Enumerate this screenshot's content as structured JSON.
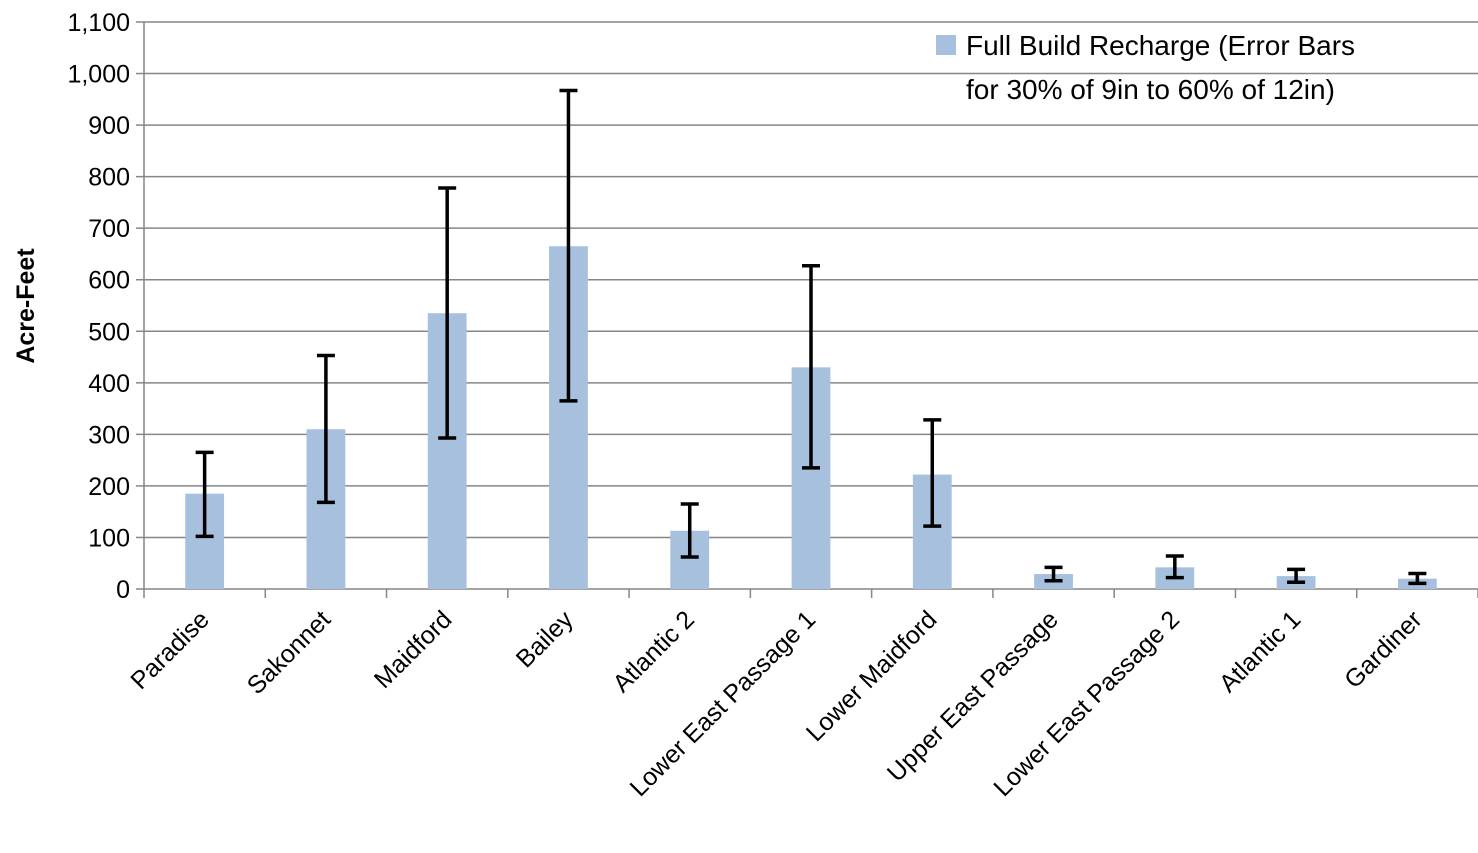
{
  "chart_data": {
    "type": "bar",
    "title": "",
    "xlabel": "",
    "ylabel": "Acre-Feet",
    "ylim": [
      0,
      1100
    ],
    "yticks": [
      0,
      100,
      200,
      300,
      400,
      500,
      600,
      700,
      800,
      900,
      1000,
      1100
    ],
    "ytick_labels": [
      "0",
      "100",
      "200",
      "300",
      "400",
      "500",
      "600",
      "700",
      "800",
      "900",
      "1,000",
      "1,100"
    ],
    "grid": true,
    "legend_position": "top-right",
    "categories": [
      "Paradise",
      "Sakonnet",
      "Maidford",
      "Bailey",
      "Atlantic 2",
      "Lower East Passage 1",
      "Lower Maidford",
      "Upper East Passage",
      "Lower East Passage 2",
      "Atlantic 1",
      "Gardiner"
    ],
    "series": [
      {
        "name": "Full Build Recharge (Error Bars for 30% of 9in to 60% of 12in)",
        "color": "#a7c0de",
        "values": [
          185,
          310,
          535,
          665,
          113,
          430,
          222,
          29,
          42,
          25,
          20
        ],
        "error_low": [
          102,
          168,
          293,
          365,
          62,
          235,
          122,
          16,
          22,
          13,
          11
        ],
        "error_high": [
          265,
          453,
          778,
          967,
          165,
          627,
          328,
          42,
          64,
          38,
          30
        ]
      }
    ],
    "legend_lines": [
      "Full Build Recharge (Error Bars",
      "for 30% of 9in to 60% of 12in)"
    ]
  }
}
